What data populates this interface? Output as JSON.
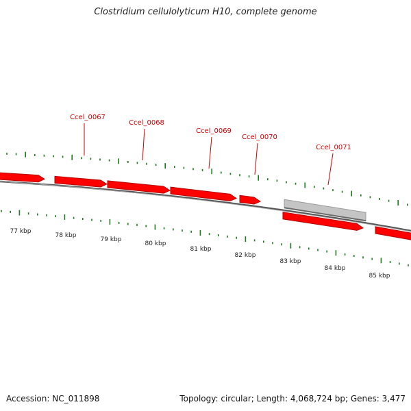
{
  "header": {
    "title": "Clostridium cellulolyticum H10, complete genome"
  },
  "footer": {
    "accession": "Accession: NC_011898",
    "topology": "Topology: circular; Length: 4,068,724 bp; Genes: 3,477"
  },
  "colors": {
    "gene_fill": "#ff0000",
    "gene_outline": "#b30000",
    "gene_label": "#cc0000",
    "tick": "#1f7a1f",
    "backbone": "#555555",
    "backbone_highlight": "#aaaaaa",
    "gray_feature": "#c4c4c4",
    "kbp_label": "#222222"
  },
  "map": {
    "kbp_labels": [
      "77 kbp",
      "78 kbp",
      "79 kbp",
      "80 kbp",
      "81 kbp",
      "82 kbp",
      "83 kbp",
      "84 kbp",
      "85 kbp"
    ],
    "gene_labels": [
      "Ccel_0067",
      "Ccel_0068",
      "Ccel_0069",
      "Ccel_0070",
      "Ccel_0071"
    ],
    "features": [
      {
        "type": "gene",
        "strand": "+"
      },
      {
        "type": "gene",
        "strand": "+"
      },
      {
        "type": "gene",
        "strand": "+"
      },
      {
        "type": "gene",
        "strand": "+"
      },
      {
        "type": "gene",
        "strand": "+"
      },
      {
        "type": "gene",
        "strand": "+"
      },
      {
        "type": "other",
        "strand": "+"
      },
      {
        "type": "gene",
        "strand": "+"
      },
      {
        "type": "gene",
        "strand": "+"
      }
    ]
  }
}
